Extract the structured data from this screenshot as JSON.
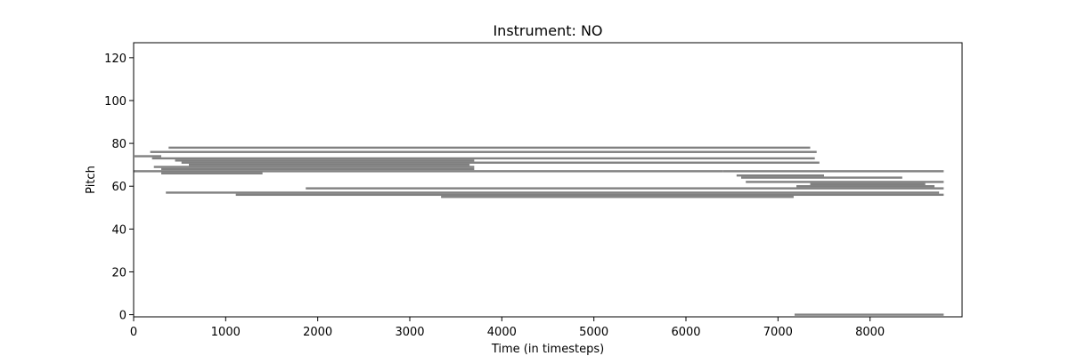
{
  "chart_data": {
    "type": "piano-roll",
    "title": "Instrument: NO",
    "xlabel": "Time (in timesteps)",
    "ylabel": "Pitch",
    "xlim": [
      0,
      9000
    ],
    "ylim": [
      -1,
      127
    ],
    "xticks": [
      0,
      1000,
      2000,
      3000,
      4000,
      5000,
      6000,
      7000,
      8000
    ],
    "yticks": [
      0,
      20,
      40,
      60,
      80,
      100,
      120
    ],
    "colors": {
      "note": "#808080",
      "accent": "#000000",
      "background": "#ffffff"
    },
    "notes": [
      {
        "pitch": 78,
        "start": 380,
        "end": 7350
      },
      {
        "pitch": 76,
        "start": 180,
        "end": 7420
      },
      {
        "pitch": 74,
        "start": 10,
        "end": 300
      },
      {
        "pitch": 73,
        "start": 200,
        "end": 7400
      },
      {
        "pitch": 72,
        "start": 450,
        "end": 3700
      },
      {
        "pitch": 71,
        "start": 520,
        "end": 7450
      },
      {
        "pitch": 70,
        "start": 600,
        "end": 3650
      },
      {
        "pitch": 69,
        "start": 220,
        "end": 3700
      },
      {
        "pitch": 68,
        "start": 300,
        "end": 3700
      },
      {
        "pitch": 67,
        "start": 0,
        "end": 6400
      },
      {
        "pitch": 67,
        "start": 6400,
        "end": 8800
      },
      {
        "pitch": 66,
        "start": 300,
        "end": 1400
      },
      {
        "pitch": 65,
        "start": 6550,
        "end": 7500
      },
      {
        "pitch": 64,
        "start": 6600,
        "end": 8350
      },
      {
        "pitch": 62,
        "start": 6650,
        "end": 8800
      },
      {
        "pitch": 61,
        "start": 7350,
        "end": 8600
      },
      {
        "pitch": 60,
        "start": 7200,
        "end": 8700
      },
      {
        "pitch": 59,
        "start": 1870,
        "end": 8800
      },
      {
        "pitch": 57,
        "start": 350,
        "end": 8750
      },
      {
        "pitch": 56,
        "start": 1110,
        "end": 8800
      },
      {
        "pitch": 55,
        "start": 3340,
        "end": 7170
      },
      {
        "pitch": 0,
        "start": 7180,
        "end": 8800
      }
    ]
  }
}
